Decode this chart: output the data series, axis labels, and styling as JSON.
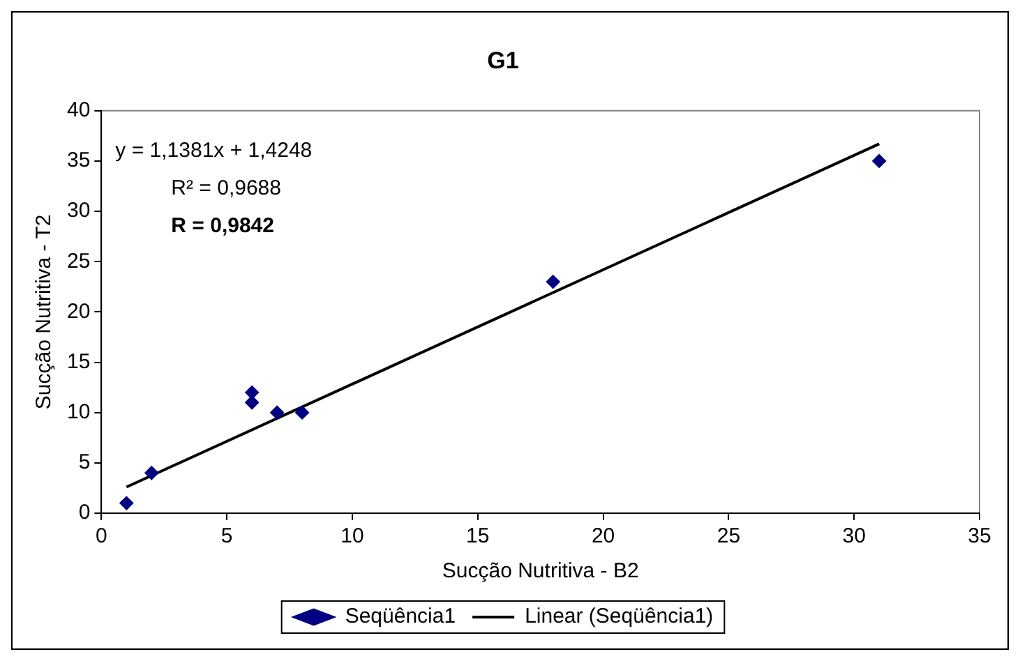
{
  "chart_data": {
    "type": "scatter",
    "title": "G1",
    "xlabel": "Sucção Nutritiva - B2",
    "ylabel": "Sucção Nutritiva - T2",
    "x": [
      1,
      2,
      6,
      6,
      7,
      8,
      18,
      31
    ],
    "series": [
      {
        "name": "Seqüência1",
        "color": "#000080",
        "marker": "diamond",
        "values": [
          1,
          4,
          12,
          11,
          10,
          10,
          23,
          35
        ]
      },
      {
        "name": "Linear (Seqüência1)",
        "type": "line",
        "color": "#000000",
        "line_style": "solid",
        "x": [
          1,
          31
        ],
        "values": [
          2.6,
          36.7
        ]
      }
    ],
    "xlim": [
      0,
      35
    ],
    "xticks": [
      0,
      5,
      10,
      15,
      20,
      25,
      30,
      35
    ],
    "ylim": [
      0,
      40
    ],
    "yticks": [
      0,
      5,
      10,
      15,
      20,
      25,
      30,
      35,
      40
    ],
    "grid": false,
    "legend": "bottom",
    "annotations": [
      "y = 1,1381x + 1,4248",
      "R² = 0,9688",
      "R = 0,9842"
    ]
  }
}
